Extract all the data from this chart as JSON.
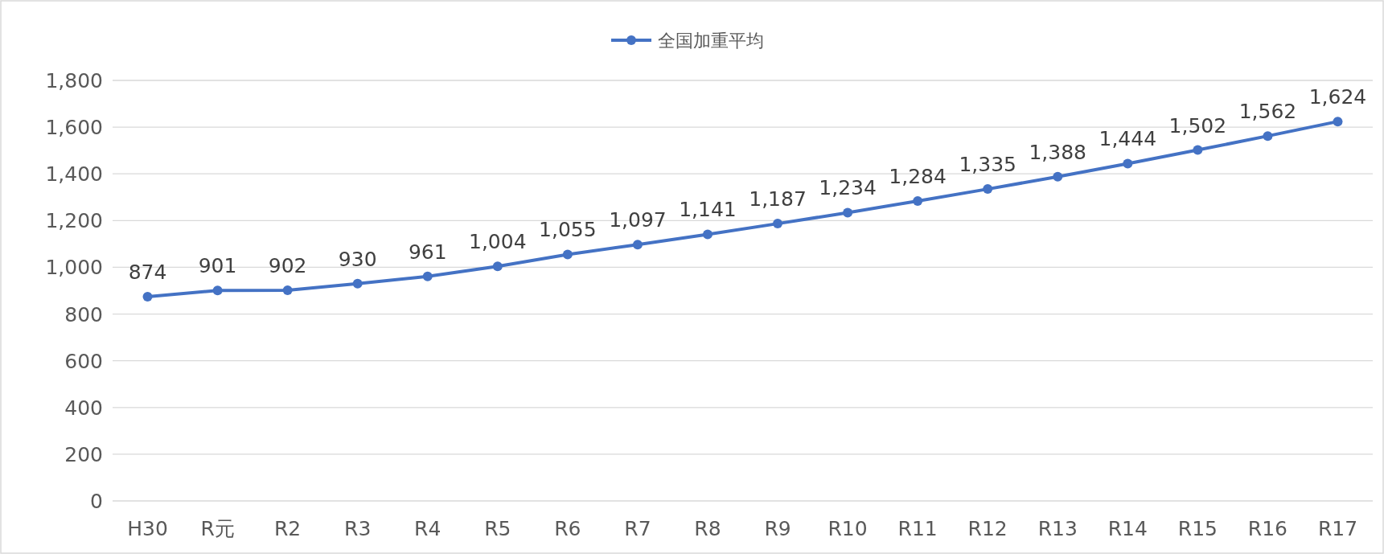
{
  "chart_data": {
    "type": "line",
    "categories": [
      "H30",
      "R元",
      "R2",
      "R3",
      "R4",
      "R5",
      "R6",
      "R7",
      "R8",
      "R9",
      "R10",
      "R11",
      "R12",
      "R13",
      "R14",
      "R15",
      "R16",
      "R17"
    ],
    "series": [
      {
        "name": "全国加重平均",
        "color": "#4472c4",
        "values": [
          874,
          901,
          902,
          930,
          961,
          1004,
          1055,
          1097,
          1141,
          1187,
          1234,
          1284,
          1335,
          1388,
          1444,
          1502,
          1562,
          1624
        ],
        "value_labels": [
          "874",
          "901",
          "902",
          "930",
          "961",
          "1,004",
          "1,055",
          "1,097",
          "1,141",
          "1,187",
          "1,234",
          "1,284",
          "1,335",
          "1,388",
          "1,444",
          "1,502",
          "1,562",
          "1,624"
        ]
      }
    ],
    "ylim": [
      0,
      1800
    ],
    "yticks": [
      0,
      200,
      400,
      600,
      800,
      {
        "value": 1000,
        "label": "1,000"
      },
      {
        "value": 1200,
        "label": "1,200"
      },
      {
        "value": 1400,
        "label": "1,400"
      },
      {
        "value": 1600,
        "label": "1,600"
      },
      {
        "value": 1800,
        "label": "1,800"
      }
    ],
    "grid": "y",
    "legend": "top",
    "marker": "circle",
    "line_style": "solid"
  }
}
